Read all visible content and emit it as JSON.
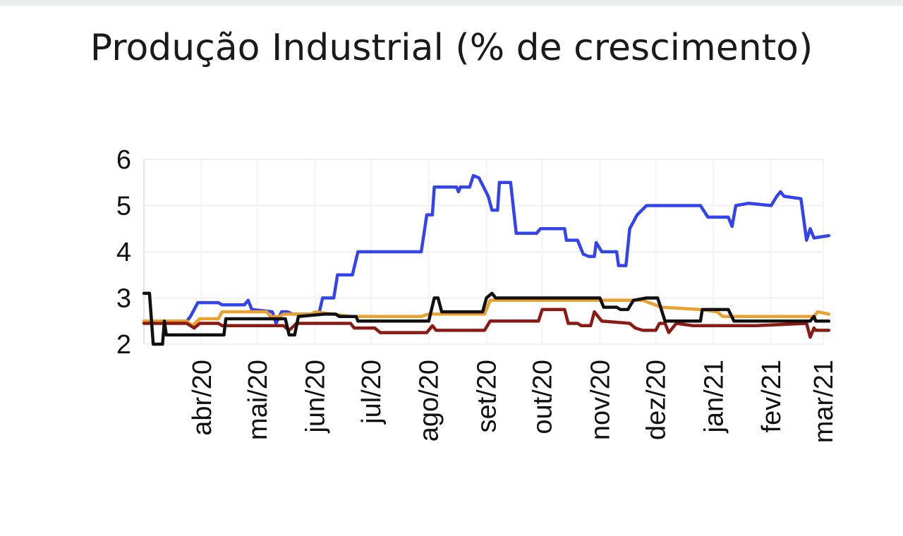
{
  "chart_data": {
    "type": "line",
    "title": "Produção Industrial (% de crescimento)",
    "xlabel": "",
    "ylabel": "",
    "ylim": [
      2,
      6
    ],
    "yticks": [
      "2",
      "3",
      "4",
      "5",
      "6"
    ],
    "x_range": [
      "2020-03-01",
      "2021-03-01"
    ],
    "xticks": [
      "abr/20",
      "mai/20",
      "jun/20",
      "jul/20",
      "ago/20",
      "set/20",
      "out/20",
      "nov/20",
      "dez/20",
      "jan/21",
      "fev/21",
      "mar/21"
    ],
    "xtick_dates": [
      "2020-04-01",
      "2020-05-01",
      "2020-06-01",
      "2020-07-01",
      "2020-08-01",
      "2020-09-01",
      "2020-10-01",
      "2020-11-01",
      "2020-12-01",
      "2021-01-01",
      "2021-02-01",
      "2021-03-01"
    ],
    "grid": true,
    "legend": "none",
    "series": [
      {
        "color": "#3344ee",
        "points": [
          [
            "2020-03-01",
            2.5
          ],
          [
            "2020-03-24",
            2.5
          ],
          [
            "2020-03-26",
            2.6
          ],
          [
            "2020-03-30",
            2.9
          ],
          [
            "2020-04-10",
            2.9
          ],
          [
            "2020-04-12",
            2.85
          ],
          [
            "2020-04-24",
            2.85
          ],
          [
            "2020-04-26",
            2.95
          ],
          [
            "2020-04-28",
            2.75
          ],
          [
            "2020-05-09",
            2.7
          ],
          [
            "2020-05-11",
            2.45
          ],
          [
            "2020-05-14",
            2.7
          ],
          [
            "2020-05-17",
            2.7
          ],
          [
            "2020-05-20",
            2.65
          ],
          [
            "2020-06-03",
            2.65
          ],
          [
            "2020-06-05",
            3.0
          ],
          [
            "2020-06-11",
            3.0
          ],
          [
            "2020-06-13",
            3.5
          ],
          [
            "2020-06-21",
            3.5
          ],
          [
            "2020-06-24",
            4.0
          ],
          [
            "2020-07-28",
            4.0
          ],
          [
            "2020-07-31",
            4.8
          ],
          [
            "2020-08-03",
            4.8
          ],
          [
            "2020-08-04",
            5.4
          ],
          [
            "2020-08-16",
            5.4
          ],
          [
            "2020-08-17",
            5.3
          ],
          [
            "2020-08-18",
            5.4
          ],
          [
            "2020-08-23",
            5.4
          ],
          [
            "2020-08-25",
            5.65
          ],
          [
            "2020-08-28",
            5.6
          ],
          [
            "2020-09-02",
            5.2
          ],
          [
            "2020-09-04",
            4.9
          ],
          [
            "2020-09-07",
            4.9
          ],
          [
            "2020-09-08",
            5.5
          ],
          [
            "2020-09-14",
            5.5
          ],
          [
            "2020-09-17",
            4.4
          ],
          [
            "2020-09-28",
            4.4
          ],
          [
            "2020-09-30",
            4.5
          ],
          [
            "2020-10-13",
            4.5
          ],
          [
            "2020-10-14",
            4.25
          ],
          [
            "2020-10-20",
            4.25
          ],
          [
            "2020-10-23",
            3.95
          ],
          [
            "2020-10-26",
            3.9
          ],
          [
            "2020-10-29",
            3.9
          ],
          [
            "2020-10-30",
            4.2
          ],
          [
            "2020-11-02",
            4.0
          ],
          [
            "2020-11-10",
            4.0
          ],
          [
            "2020-11-11",
            3.7
          ],
          [
            "2020-11-15",
            3.7
          ],
          [
            "2020-11-17",
            4.5
          ],
          [
            "2020-11-21",
            4.8
          ],
          [
            "2020-11-26",
            5.0
          ],
          [
            "2020-12-25",
            5.0
          ],
          [
            "2020-12-29",
            4.75
          ],
          [
            "2021-01-09",
            4.75
          ],
          [
            "2021-01-11",
            4.55
          ],
          [
            "2021-01-13",
            5.0
          ],
          [
            "2021-01-20",
            5.05
          ],
          [
            "2021-02-01",
            5.0
          ],
          [
            "2021-02-04",
            5.2
          ],
          [
            "2021-02-06",
            5.3
          ],
          [
            "2021-02-08",
            5.2
          ],
          [
            "2021-02-17",
            5.15
          ],
          [
            "2021-02-20",
            4.25
          ],
          [
            "2021-02-22",
            4.5
          ],
          [
            "2021-02-24",
            4.3
          ],
          [
            "2021-03-04",
            4.35
          ]
        ]
      },
      {
        "color": "#eaa12f",
        "points": [
          [
            "2020-03-01",
            2.5
          ],
          [
            "2020-03-24",
            2.5
          ],
          [
            "2020-03-27",
            2.4
          ],
          [
            "2020-03-31",
            2.55
          ],
          [
            "2020-04-10",
            2.55
          ],
          [
            "2020-04-12",
            2.7
          ],
          [
            "2020-05-06",
            2.7
          ],
          [
            "2020-05-08",
            2.6
          ],
          [
            "2020-05-13",
            2.6
          ],
          [
            "2020-05-15",
            2.65
          ],
          [
            "2020-05-30",
            2.65
          ],
          [
            "2020-06-01",
            2.7
          ],
          [
            "2020-06-20",
            2.6
          ],
          [
            "2020-07-28",
            2.6
          ],
          [
            "2020-08-01",
            2.65
          ],
          [
            "2020-08-31",
            2.65
          ],
          [
            "2020-09-03",
            2.95
          ],
          [
            "2020-11-04",
            2.95
          ],
          [
            "2020-11-10",
            2.95
          ],
          [
            "2020-11-24",
            2.95
          ],
          [
            "2020-12-04",
            2.8
          ],
          [
            "2020-12-25",
            2.75
          ],
          [
            "2021-01-03",
            2.7
          ],
          [
            "2021-01-06",
            2.6
          ],
          [
            "2021-02-24",
            2.6
          ],
          [
            "2021-02-26",
            2.7
          ],
          [
            "2021-03-04",
            2.65
          ]
        ]
      },
      {
        "color": "#8b1a14",
        "points": [
          [
            "2020-03-01",
            2.45
          ],
          [
            "2020-03-24",
            2.45
          ],
          [
            "2020-03-28",
            2.35
          ],
          [
            "2020-03-31",
            2.45
          ],
          [
            "2020-04-10",
            2.45
          ],
          [
            "2020-04-12",
            2.4
          ],
          [
            "2020-05-15",
            2.4
          ],
          [
            "2020-05-18",
            2.3
          ],
          [
            "2020-05-22",
            2.45
          ],
          [
            "2020-06-20",
            2.45
          ],
          [
            "2020-06-22",
            2.35
          ],
          [
            "2020-07-03",
            2.35
          ],
          [
            "2020-07-06",
            2.25
          ],
          [
            "2020-07-31",
            2.25
          ],
          [
            "2020-08-03",
            2.4
          ],
          [
            "2020-08-05",
            2.3
          ],
          [
            "2020-08-31",
            2.3
          ],
          [
            "2020-09-03",
            2.5
          ],
          [
            "2020-09-29",
            2.5
          ],
          [
            "2020-10-01",
            2.75
          ],
          [
            "2020-10-13",
            2.75
          ],
          [
            "2020-10-15",
            2.45
          ],
          [
            "2020-10-20",
            2.45
          ],
          [
            "2020-10-22",
            2.4
          ],
          [
            "2020-10-27",
            2.4
          ],
          [
            "2020-10-29",
            2.7
          ],
          [
            "2020-11-02",
            2.5
          ],
          [
            "2020-11-17",
            2.45
          ],
          [
            "2020-11-20",
            2.35
          ],
          [
            "2020-11-24",
            2.3
          ],
          [
            "2020-12-01",
            2.3
          ],
          [
            "2020-12-03",
            2.45
          ],
          [
            "2020-12-06",
            2.45
          ],
          [
            "2020-12-08",
            2.25
          ],
          [
            "2020-12-12",
            2.45
          ],
          [
            "2020-12-21",
            2.4
          ],
          [
            "2021-01-04",
            2.4
          ],
          [
            "2021-01-24",
            2.4
          ],
          [
            "2021-02-20",
            2.45
          ],
          [
            "2021-02-22",
            2.15
          ],
          [
            "2021-02-24",
            2.35
          ],
          [
            "2021-02-25",
            2.3
          ],
          [
            "2021-03-04",
            2.3
          ]
        ]
      },
      {
        "color": "#111111",
        "points": [
          [
            "2020-03-01",
            3.1
          ],
          [
            "2020-03-04",
            3.1
          ],
          [
            "2020-03-06",
            2.0
          ],
          [
            "2020-03-11",
            2.0
          ],
          [
            "2020-03-12",
            2.5
          ],
          [
            "2020-03-13",
            2.2
          ],
          [
            "2020-04-13",
            2.2
          ],
          [
            "2020-04-14",
            2.55
          ],
          [
            "2020-05-16",
            2.55
          ],
          [
            "2020-05-18",
            2.2
          ],
          [
            "2020-05-21",
            2.2
          ],
          [
            "2020-05-23",
            2.6
          ],
          [
            "2020-06-06",
            2.65
          ],
          [
            "2020-06-12",
            2.65
          ],
          [
            "2020-06-14",
            2.6
          ],
          [
            "2020-06-23",
            2.6
          ],
          [
            "2020-06-24",
            2.5
          ],
          [
            "2020-08-01",
            2.5
          ],
          [
            "2020-08-04",
            3.0
          ],
          [
            "2020-08-06",
            3.0
          ],
          [
            "2020-08-08",
            2.7
          ],
          [
            "2020-08-30",
            2.7
          ],
          [
            "2020-09-01",
            3.0
          ],
          [
            "2020-09-04",
            3.1
          ],
          [
            "2020-09-06",
            3.0
          ],
          [
            "2020-11-01",
            3.0
          ],
          [
            "2020-11-03",
            2.8
          ],
          [
            "2020-11-10",
            2.8
          ],
          [
            "2020-11-12",
            2.75
          ],
          [
            "2020-11-16",
            2.75
          ],
          [
            "2020-11-19",
            2.95
          ],
          [
            "2020-11-26",
            3.0
          ],
          [
            "2020-12-02",
            3.0
          ],
          [
            "2020-12-06",
            2.5
          ],
          [
            "2020-12-25",
            2.5
          ],
          [
            "2020-12-26",
            2.75
          ],
          [
            "2021-01-09",
            2.75
          ],
          [
            "2021-01-12",
            2.5
          ],
          [
            "2021-02-22",
            2.5
          ],
          [
            "2021-02-24",
            2.6
          ],
          [
            "2021-02-25",
            2.5
          ],
          [
            "2021-03-04",
            2.5
          ]
        ]
      }
    ]
  }
}
